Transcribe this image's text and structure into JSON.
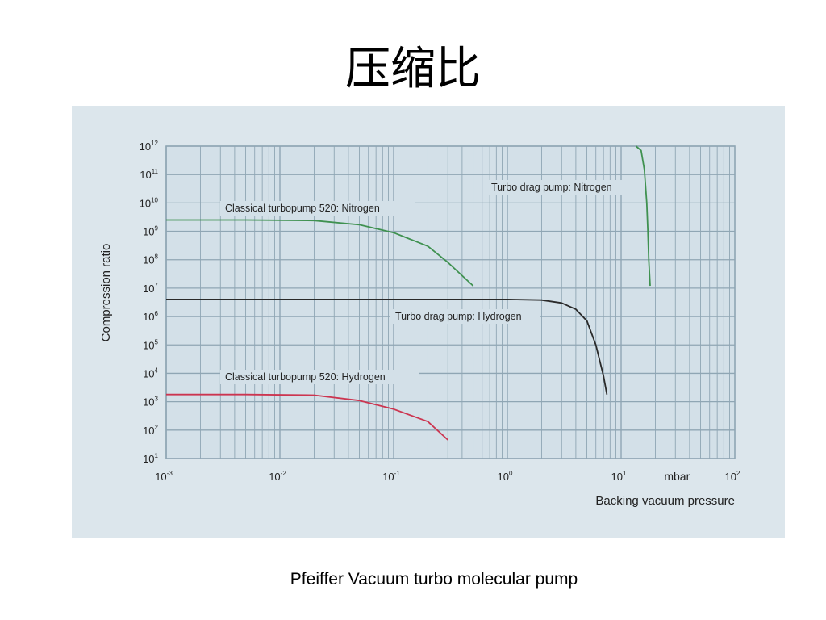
{
  "slide": {
    "title": "压缩比",
    "caption": "Pfeiffer Vacuum turbo molecular pump"
  },
  "colors": {
    "panel_bg": "#dce6ec",
    "plot_bg": "#d3e0e8",
    "grid": "#8fa6b4",
    "green": "#3f9150",
    "black": "#2a2a2a",
    "red": "#cc3550"
  },
  "chart_data": {
    "type": "line",
    "xscale": "log",
    "yscale": "log",
    "xlim": [
      0.001,
      100
    ],
    "ylim": [
      10,
      1000000000000
    ],
    "xlabel": "Backing vacuum pressure",
    "ylabel": "Compression ratio",
    "x_unit_label": "mbar",
    "grid": true,
    "x_ticks": [
      {
        "value": 0.001,
        "mant": "10",
        "exp": "-3"
      },
      {
        "value": 0.01,
        "mant": "10",
        "exp": "-2"
      },
      {
        "value": 0.1,
        "mant": "10",
        "exp": "-1"
      },
      {
        "value": 1,
        "mant": "10",
        "exp": "0"
      },
      {
        "value": 10,
        "mant": "10",
        "exp": "1"
      },
      {
        "value": 100,
        "mant": "10",
        "exp": "2"
      }
    ],
    "y_ticks": [
      {
        "value": 10,
        "mant": "10",
        "exp": "1"
      },
      {
        "value": 100,
        "mant": "10",
        "exp": "2"
      },
      {
        "value": 1000,
        "mant": "10",
        "exp": "3"
      },
      {
        "value": 10000,
        "mant": "10",
        "exp": "4"
      },
      {
        "value": 100000,
        "mant": "10",
        "exp": "5"
      },
      {
        "value": 1000000,
        "mant": "10",
        "exp": "6"
      },
      {
        "value": 10000000,
        "mant": "10",
        "exp": "7"
      },
      {
        "value": 100000000,
        "mant": "10",
        "exp": "8"
      },
      {
        "value": 1000000000,
        "mant": "10",
        "exp": "9"
      },
      {
        "value": 10000000000,
        "mant": "10",
        "exp": "10"
      },
      {
        "value": 100000000000,
        "mant": "10",
        "exp": "11"
      },
      {
        "value": 1000000000000,
        "mant": "10",
        "exp": "12"
      }
    ],
    "series": [
      {
        "name": "Classical turbopump 520: Nitrogen",
        "color": "#3f9150",
        "x": [
          0.001,
          0.005,
          0.02,
          0.05,
          0.1,
          0.2,
          0.3,
          0.5
        ],
        "y": [
          2500000000,
          2500000000,
          2400000000,
          1700000000,
          900000000,
          300000000,
          80000000,
          12000000
        ]
      },
      {
        "name": "Turbo drag pump: Nitrogen",
        "color": "#3f9150",
        "x": [
          13.5,
          15,
          16,
          16.8,
          17.2,
          17.5,
          18
        ],
        "y": [
          1000000000000,
          700000000000,
          150000000000,
          10000000000,
          1000000000,
          100000000,
          12000000
        ]
      },
      {
        "name": "Turbo drag pump: Hydrogen",
        "color": "#2a2a2a",
        "x": [
          0.001,
          0.01,
          0.1,
          1,
          2,
          3,
          4,
          5,
          6,
          7,
          7.5
        ],
        "y": [
          4000000,
          4000000,
          4000000,
          4000000,
          3800000,
          3000000,
          1800000,
          700000,
          100000,
          8000,
          1800
        ]
      },
      {
        "name": "Classical turbopump 520: Hydrogen",
        "color": "#cc3550",
        "x": [
          0.001,
          0.005,
          0.02,
          0.05,
          0.1,
          0.2,
          0.3
        ],
        "y": [
          1800,
          1800,
          1700,
          1100,
          550,
          200,
          45
        ]
      }
    ]
  }
}
